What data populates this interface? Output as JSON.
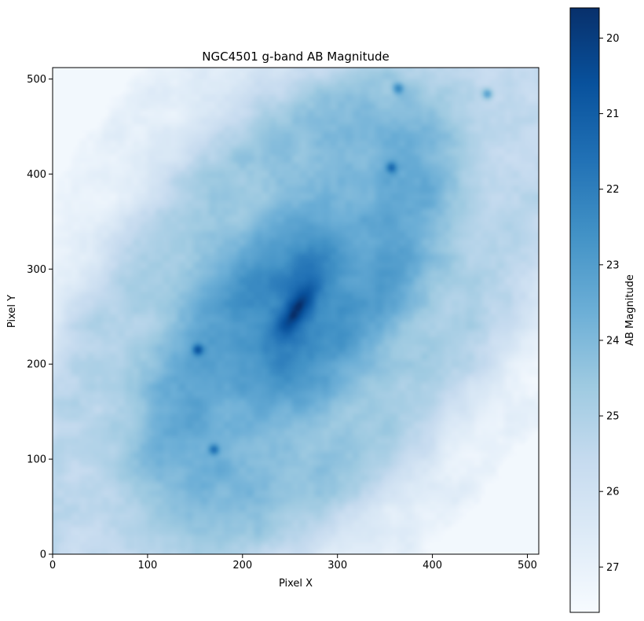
{
  "chart_data": {
    "type": "heatmap",
    "title": "NGC4501 g-band AB Magnitude",
    "xlabel": "Pixel X",
    "ylabel": "Pixel Y",
    "xlim": [
      0,
      512
    ],
    "ylim": [
      0,
      512
    ],
    "xticks": [
      0,
      100,
      200,
      300,
      400,
      500
    ],
    "yticks": [
      0,
      100,
      200,
      300,
      400,
      500
    ],
    "colormap": "Blues_r",
    "colorbar": {
      "label": "AB Magnitude",
      "range": [
        19.6,
        27.6
      ],
      "ticks": [
        20,
        21,
        22,
        23,
        24,
        25,
        26,
        27
      ],
      "inverted": true,
      "dark_color": "#08306b",
      "light_color": "#f7fbff"
    },
    "galaxy": {
      "nucleus_center": [
        256,
        256
      ],
      "nucleus_magnitude": 20.5,
      "background_magnitude": 26.8,
      "major_axis_angle_deg": 55,
      "bright_knots": [
        {
          "x": 364,
          "y": 490
        },
        {
          "x": 458,
          "y": 484
        },
        {
          "x": 357,
          "y": 407
        },
        {
          "x": 153,
          "y": 215
        },
        {
          "x": 170,
          "y": 110
        }
      ]
    }
  }
}
